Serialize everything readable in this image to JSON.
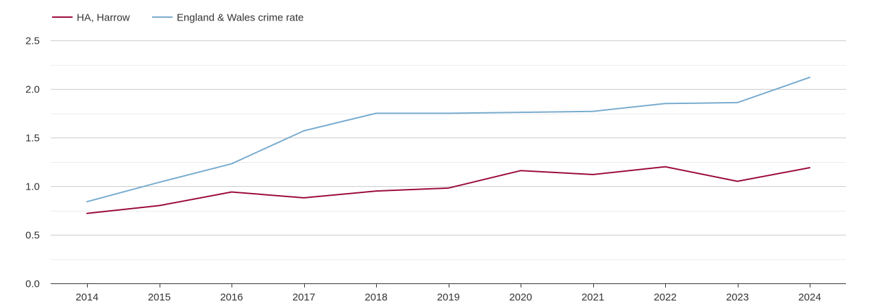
{
  "chart_data": {
    "type": "line",
    "title": "",
    "xlabel": "",
    "ylabel": "",
    "categories": [
      "2014",
      "2015",
      "2016",
      "2017",
      "2018",
      "2019",
      "2020",
      "2021",
      "2022",
      "2023",
      "2024"
    ],
    "ylim": [
      0,
      2.5
    ],
    "yticks": [
      "0.0",
      "0.5",
      "1.0",
      "1.5",
      "2.0",
      "2.5"
    ],
    "grid": true,
    "legend_position": "top-left",
    "series": [
      {
        "name": "HA, Harrow",
        "color": "#9b0a37",
        "values": [
          0.72,
          0.8,
          0.94,
          0.88,
          0.95,
          0.98,
          1.16,
          1.12,
          1.2,
          1.05,
          1.19
        ]
      },
      {
        "name": "England & Wales crime rate",
        "color": "#77abcf",
        "values": [
          0.84,
          1.04,
          1.23,
          1.57,
          1.75,
          1.75,
          1.76,
          1.77,
          1.85,
          1.86,
          2.12
        ]
      }
    ]
  }
}
